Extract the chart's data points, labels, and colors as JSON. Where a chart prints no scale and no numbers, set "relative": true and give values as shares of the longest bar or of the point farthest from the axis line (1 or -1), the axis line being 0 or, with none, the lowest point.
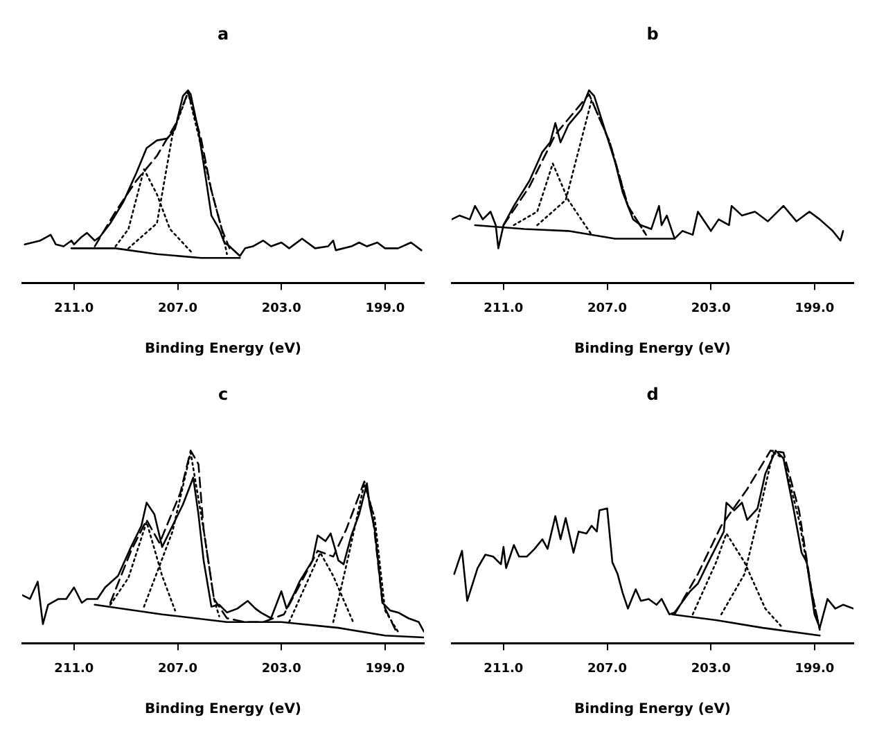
{
  "chart_data": [
    {
      "type": "line",
      "title": "a",
      "xlabel": "Binding Energy (eV)",
      "relative": true,
      "xlim": [
        213.0,
        197.5
      ],
      "xticks": [
        {
          "value": 211,
          "label": "211.0"
        },
        {
          "value": 207,
          "label": "207.0"
        },
        {
          "value": 203,
          "label": "203.0"
        },
        {
          "value": 199,
          "label": "199.0"
        }
      ],
      "tick_labels": "x",
      "marker": "none",
      "series": [
        {
          "color": "#000000",
          "line_style": "solid",
          "x": [
            212.9,
            212.3,
            211.9,
            211.7,
            211.4,
            211.1,
            211.0,
            210.7,
            210.5,
            210.2,
            210.0,
            209.6,
            209.1,
            208.6,
            208.2,
            207.8,
            207.4,
            207.1,
            206.8,
            206.6,
            206.5,
            206.2,
            205.9,
            205.7,
            205.4,
            205.2,
            205.0,
            204.6,
            204.4,
            204.1,
            203.7,
            203.4,
            203.0,
            202.7,
            202.2,
            201.7,
            201.2,
            201.0,
            200.9,
            200.3,
            200.0,
            199.7,
            199.3,
            199.0,
            198.5,
            198.0,
            197.6
          ],
          "values": [
            0.2,
            0.22,
            0.25,
            0.2,
            0.19,
            0.22,
            0.2,
            0.24,
            0.26,
            0.22,
            0.24,
            0.31,
            0.42,
            0.57,
            0.7,
            0.74,
            0.75,
            0.8,
            0.97,
            1.0,
            0.98,
            0.79,
            0.53,
            0.35,
            0.28,
            0.21,
            0.19,
            0.14,
            0.18,
            0.19,
            0.22,
            0.19,
            0.21,
            0.18,
            0.23,
            0.18,
            0.19,
            0.22,
            0.17,
            0.19,
            0.21,
            0.19,
            0.21,
            0.18,
            0.18,
            0.21,
            0.17
          ]
        },
        {
          "color": "#000000",
          "line_style": "dashed",
          "x": [
            210.2,
            209.4,
            208.6,
            207.8,
            207.1,
            206.6,
            206.1,
            205.7,
            205.3,
            205.0
          ],
          "values": [
            0.19,
            0.37,
            0.53,
            0.66,
            0.82,
            0.99,
            0.75,
            0.48,
            0.28,
            0.18
          ]
        },
        {
          "color": "#000000",
          "line_style": "dotted",
          "x": [
            209.4,
            208.9,
            208.3,
            207.8,
            207.3,
            206.4
          ],
          "values": [
            0.19,
            0.28,
            0.59,
            0.46,
            0.28,
            0.15
          ]
        },
        {
          "color": "#000000",
          "line_style": "dotted",
          "x": [
            208.9,
            207.8,
            207.2,
            206.6,
            206.1,
            205.7,
            205.3,
            205.1
          ],
          "values": [
            0.18,
            0.31,
            0.77,
            0.99,
            0.71,
            0.48,
            0.28,
            0.15
          ]
        },
        {
          "color": "#000000",
          "line_style": "solid",
          "x": [
            211.1,
            209.4,
            207.8,
            206.1,
            204.6
          ],
          "values": [
            0.18,
            0.18,
            0.15,
            0.13,
            0.13
          ]
        }
      ]
    },
    {
      "type": "line",
      "title": "b",
      "xlabel": "Binding Energy (eV)",
      "relative": true,
      "xlim": [
        213.0,
        197.5
      ],
      "xticks": [
        {
          "value": 211,
          "label": "211.0"
        },
        {
          "value": 207,
          "label": "207.0"
        },
        {
          "value": 203,
          "label": "203.0"
        },
        {
          "value": 199,
          "label": "199.0"
        }
      ],
      "tick_labels": "x",
      "marker": "none",
      "series": [
        {
          "color": "#000000",
          "line_style": "solid",
          "x": [
            213.0,
            212.7,
            212.3,
            212.1,
            211.8,
            211.5,
            211.3,
            211.2,
            211.0,
            210.6,
            210.0,
            209.5,
            209.2,
            209.0,
            208.8,
            208.5,
            208.0,
            207.7,
            207.5,
            207.1,
            206.7,
            206.4,
            206.0,
            205.7,
            205.3,
            205.0,
            204.9,
            204.7,
            204.4,
            204.1,
            203.7,
            203.5,
            203.0,
            202.7,
            202.3,
            202.2,
            201.8,
            201.3,
            200.8,
            200.2,
            199.7,
            199.2,
            198.8,
            198.3,
            198.0,
            197.9
          ],
          "values": [
            0.33,
            0.35,
            0.33,
            0.4,
            0.33,
            0.37,
            0.3,
            0.18,
            0.3,
            0.4,
            0.53,
            0.68,
            0.73,
            0.83,
            0.73,
            0.82,
            0.9,
            1.0,
            0.97,
            0.8,
            0.63,
            0.47,
            0.33,
            0.3,
            0.28,
            0.4,
            0.3,
            0.35,
            0.23,
            0.27,
            0.25,
            0.37,
            0.27,
            0.33,
            0.3,
            0.4,
            0.35,
            0.37,
            0.32,
            0.4,
            0.32,
            0.37,
            0.33,
            0.27,
            0.22,
            0.27
          ]
        },
        {
          "color": "#000000",
          "line_style": "dashed",
          "x": [
            211.0,
            210.0,
            209.0,
            207.7,
            206.9,
            206.2,
            205.5
          ],
          "values": [
            0.3,
            0.5,
            0.77,
            0.98,
            0.73,
            0.4,
            0.25
          ]
        },
        {
          "color": "#000000",
          "line_style": "dotted",
          "x": [
            210.6,
            209.7,
            209.1,
            208.5,
            207.6
          ],
          "values": [
            0.3,
            0.37,
            0.62,
            0.43,
            0.25
          ]
        },
        {
          "color": "#000000",
          "line_style": "dotted",
          "x": [
            209.7,
            208.6,
            207.6,
            206.9,
            206.2,
            205.5
          ],
          "values": [
            0.3,
            0.43,
            0.95,
            0.73,
            0.4,
            0.25
          ]
        },
        {
          "color": "#000000",
          "line_style": "solid",
          "x": [
            212.1,
            210.2,
            208.5,
            206.7,
            204.4
          ],
          "values": [
            0.3,
            0.28,
            0.27,
            0.23,
            0.23
          ]
        }
      ]
    },
    {
      "type": "line",
      "title": "c",
      "xlabel": "Binding Energy (eV)",
      "relative": true,
      "xlim": [
        213.0,
        197.5
      ],
      "xticks": [
        {
          "value": 211,
          "label": "211.0"
        },
        {
          "value": 207,
          "label": "207.0"
        },
        {
          "value": 203,
          "label": "203.0"
        },
        {
          "value": 199,
          "label": "199.0"
        }
      ],
      "tick_labels": "x",
      "marker": "none",
      "series": [
        {
          "color": "#000000",
          "line_style": "solid",
          "x": [
            213.0,
            212.7,
            212.4,
            212.2,
            212.0,
            211.6,
            211.3,
            211.0,
            210.7,
            210.5,
            210.1,
            209.8,
            209.3,
            208.8,
            208.4,
            208.2,
            207.9,
            207.6,
            207.2,
            206.8,
            206.4,
            206.2,
            206.0,
            205.7,
            205.4,
            205.1,
            204.7,
            204.3,
            204.0,
            203.8,
            203.4,
            203.0,
            202.8,
            202.5,
            202.3,
            201.8,
            201.6,
            201.3,
            201.1,
            200.8,
            200.6,
            200.3,
            200.0,
            199.7,
            199.6,
            199.4,
            199.1,
            198.8,
            198.5,
            198.1,
            197.7,
            197.5
          ],
          "values": [
            0.25,
            0.23,
            0.32,
            0.1,
            0.2,
            0.23,
            0.23,
            0.29,
            0.21,
            0.23,
            0.23,
            0.29,
            0.35,
            0.5,
            0.61,
            0.73,
            0.67,
            0.5,
            0.61,
            0.72,
            0.86,
            0.67,
            0.43,
            0.19,
            0.2,
            0.16,
            0.18,
            0.22,
            0.18,
            0.16,
            0.13,
            0.27,
            0.18,
            0.26,
            0.32,
            0.43,
            0.56,
            0.53,
            0.57,
            0.43,
            0.41,
            0.56,
            0.67,
            0.83,
            0.72,
            0.59,
            0.21,
            0.17,
            0.16,
            0.13,
            0.11,
            0.06
          ]
        },
        {
          "color": "#000000",
          "line_style": "dashed",
          "x": [
            209.6,
            208.8,
            208.2,
            207.7,
            206.9,
            206.5,
            206.2,
            206.0,
            205.6,
            205.1,
            204.4,
            203.7,
            202.9,
            202.3,
            201.6,
            201.0,
            200.5,
            199.8,
            199.5,
            199.1,
            198.6
          ],
          "values": [
            0.21,
            0.48,
            0.64,
            0.52,
            0.78,
            1.0,
            0.93,
            0.59,
            0.23,
            0.13,
            0.11,
            0.11,
            0.15,
            0.3,
            0.48,
            0.45,
            0.59,
            0.84,
            0.69,
            0.21,
            0.07
          ]
        },
        {
          "color": "#000000",
          "line_style": "dotted",
          "x": [
            209.6,
            208.9,
            208.2,
            207.6,
            207.1
          ],
          "values": [
            0.2,
            0.34,
            0.63,
            0.35,
            0.17
          ]
        },
        {
          "color": "#000000",
          "line_style": "dotted",
          "x": [
            208.3,
            207.2,
            206.5,
            206.0,
            205.6,
            205.4
          ],
          "values": [
            0.19,
            0.58,
            0.99,
            0.59,
            0.23,
            0.14
          ]
        },
        {
          "color": "#000000",
          "line_style": "dotted",
          "x": [
            202.7,
            202.0,
            201.5,
            201.0,
            200.2
          ],
          "values": [
            0.11,
            0.32,
            0.47,
            0.35,
            0.1
          ]
        },
        {
          "color": "#000000",
          "line_style": "dotted",
          "x": [
            201.0,
            200.4,
            199.8,
            199.4,
            199.0,
            198.5
          ],
          "values": [
            0.11,
            0.46,
            0.83,
            0.65,
            0.17,
            0.06
          ]
        },
        {
          "color": "#000000",
          "line_style": "solid",
          "x": [
            210.2,
            207.6,
            205.1,
            203.0,
            200.8,
            199.0,
            197.5
          ],
          "values": [
            0.2,
            0.15,
            0.11,
            0.11,
            0.08,
            0.04,
            0.03
          ]
        }
      ]
    },
    {
      "type": "line",
      "title": "d",
      "xlabel": "Binding Energy (eV)",
      "relative": true,
      "xlim": [
        213.0,
        197.5
      ],
      "xticks": [
        {
          "value": 211,
          "label": "211.0"
        },
        {
          "value": 207,
          "label": "207.0"
        },
        {
          "value": 203,
          "label": "203.0"
        },
        {
          "value": 199,
          "label": "199.0"
        }
      ],
      "tick_labels": "x",
      "marker": "none",
      "series": [
        {
          "color": "#000000",
          "line_style": "solid",
          "x": [
            212.9,
            212.6,
            212.4,
            212.0,
            211.7,
            211.4,
            211.1,
            211.0,
            210.9,
            210.6,
            210.4,
            210.1,
            209.8,
            209.5,
            209.3,
            209.0,
            208.8,
            208.6,
            208.3,
            208.1,
            207.8,
            207.6,
            207.4,
            207.3,
            207.0,
            206.8,
            206.6,
            206.4,
            206.2,
            205.9,
            205.7,
            205.4,
            205.1,
            204.9,
            204.6,
            204.4,
            203.8,
            203.5,
            203.1,
            202.8,
            202.5,
            202.4,
            202.1,
            201.8,
            201.6,
            201.2,
            200.9,
            200.5,
            200.2,
            199.8,
            199.5,
            199.3,
            199.0,
            198.8,
            198.5,
            198.2,
            197.9,
            197.5
          ],
          "values": [
            0.36,
            0.48,
            0.22,
            0.39,
            0.46,
            0.45,
            0.41,
            0.5,
            0.39,
            0.51,
            0.45,
            0.45,
            0.49,
            0.54,
            0.49,
            0.66,
            0.54,
            0.65,
            0.47,
            0.58,
            0.57,
            0.61,
            0.58,
            0.69,
            0.7,
            0.42,
            0.36,
            0.26,
            0.18,
            0.28,
            0.22,
            0.23,
            0.2,
            0.23,
            0.15,
            0.16,
            0.27,
            0.31,
            0.42,
            0.5,
            0.58,
            0.73,
            0.69,
            0.73,
            0.64,
            0.7,
            0.88,
            1.0,
            0.96,
            0.69,
            0.47,
            0.42,
            0.15,
            0.08,
            0.23,
            0.18,
            0.2,
            0.18
          ]
        },
        {
          "color": "#000000",
          "line_style": "dashed",
          "x": [
            204.4,
            203.5,
            202.6,
            201.6,
            200.7,
            200.2,
            199.6,
            199.1,
            198.8
          ],
          "values": [
            0.15,
            0.36,
            0.61,
            0.8,
            1.0,
            0.99,
            0.69,
            0.26,
            0.07
          ]
        },
        {
          "color": "#000000",
          "line_style": "dotted",
          "x": [
            203.7,
            202.8,
            202.4,
            201.7,
            200.9,
            200.3
          ],
          "values": [
            0.15,
            0.42,
            0.57,
            0.42,
            0.18,
            0.09
          ]
        },
        {
          "color": "#000000",
          "line_style": "dotted",
          "x": [
            202.6,
            201.7,
            201.2,
            200.6,
            200.2,
            199.6,
            199.1,
            198.8
          ],
          "values": [
            0.15,
            0.36,
            0.64,
            0.99,
            0.96,
            0.64,
            0.26,
            0.07
          ]
        },
        {
          "color": "#000000",
          "line_style": "solid",
          "x": [
            204.5,
            202.8,
            201.0,
            198.8
          ],
          "values": [
            0.15,
            0.12,
            0.08,
            0.04
          ]
        }
      ]
    }
  ]
}
